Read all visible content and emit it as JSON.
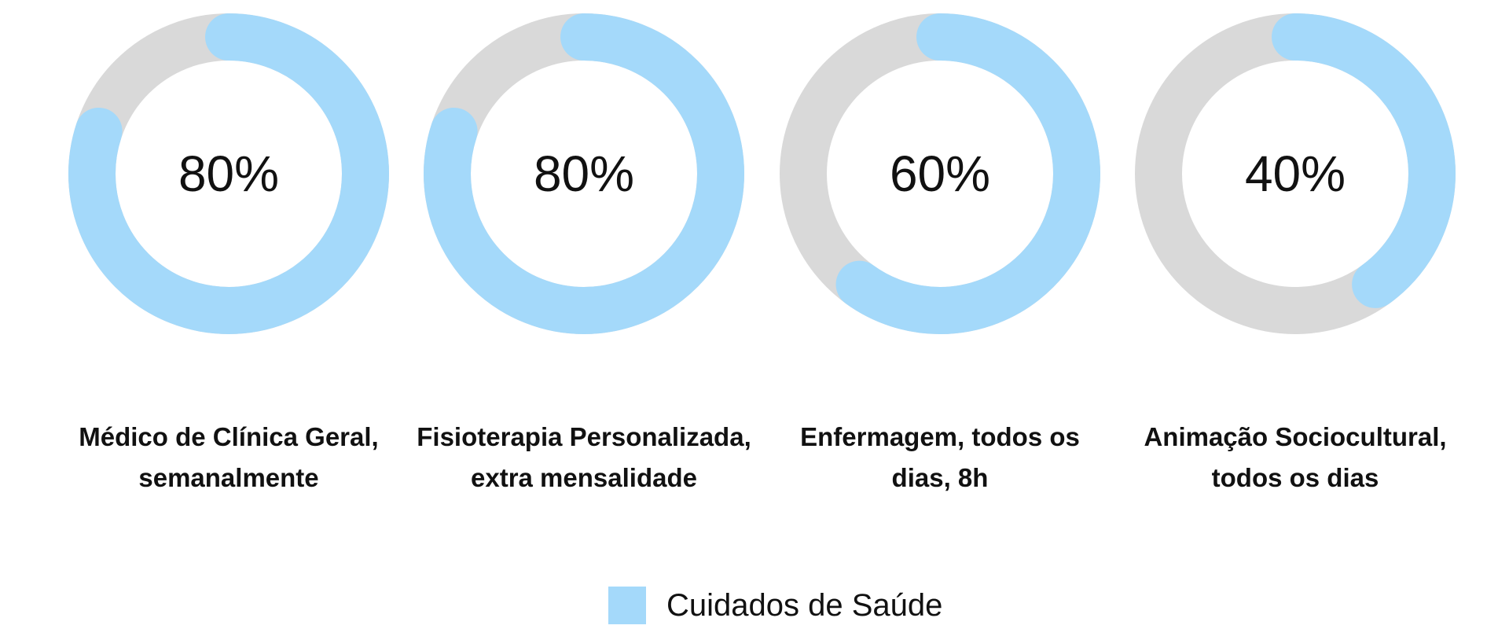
{
  "colors": {
    "filled": "#a4d9fa",
    "track": "#d9d9d9",
    "text": "#111111"
  },
  "chart_data": {
    "type": "donut",
    "series_name": "Cuidados de Saúde",
    "items": [
      {
        "value": 80,
        "label_text": "80%",
        "caption": [
          "Médico de Clínica Geral,",
          "semanalmente"
        ]
      },
      {
        "value": 80,
        "label_text": "80%",
        "caption": [
          "Fisioterapia Personalizada,",
          "extra mensalidade"
        ]
      },
      {
        "value": 60,
        "label_text": "60%",
        "caption": [
          "Enfermagem, todos os",
          "dias, 8h"
        ]
      },
      {
        "value": 40,
        "label_text": "40%",
        "caption": [
          "Animação Sociocultural,",
          "todos os dias"
        ]
      }
    ],
    "legend": {
      "label": "Cuidados de Saúde",
      "placement": "bottom-center"
    }
  }
}
